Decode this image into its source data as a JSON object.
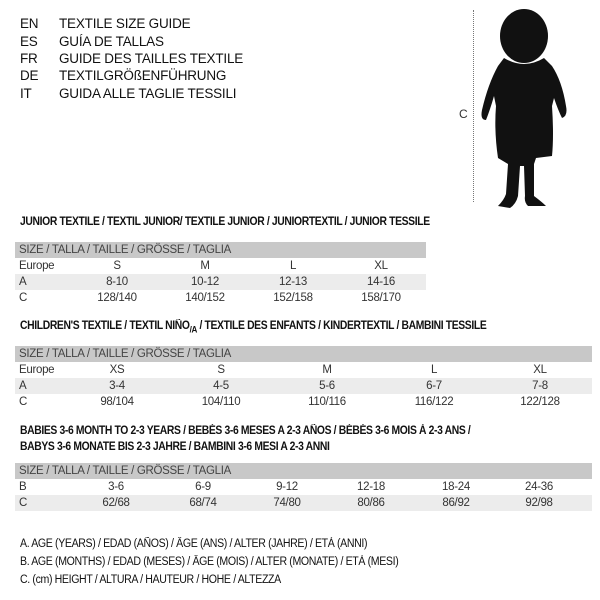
{
  "languages": [
    {
      "code": "EN",
      "name": "TEXTILE SIZE GUIDE"
    },
    {
      "code": "ES",
      "name": "GUÍA DE TALLAS"
    },
    {
      "code": "FR",
      "name": "GUIDE DES TAILLES TEXTILE"
    },
    {
      "code": "DE",
      "name": "TEXTILGRÖßENFÜHRUNG"
    },
    {
      "code": "IT",
      "name": "GUIDA ALLE TAGLIE TESSILI"
    }
  ],
  "figure": {
    "measure_label": "C"
  },
  "junior": {
    "title": "JUNIOR TEXTILE / TEXTIL JUNIOR/ TEXTILE JUNIOR / JUNIORTEXTIL / JUNIOR TESSILE",
    "header": "SIZE / TALLA / TAILLE / GRÖSSE / TAGLIA",
    "rows": [
      {
        "label": "Europe",
        "cells": [
          "S",
          "M",
          "L",
          "XL"
        ]
      },
      {
        "label": "A",
        "cells": [
          "8-10",
          "10-12",
          "12-13",
          "14-16"
        ]
      },
      {
        "label": "C",
        "cells": [
          "128/140",
          "140/152",
          "152/158",
          "158/170"
        ]
      }
    ]
  },
  "children": {
    "title_pre": "CHILDREN'S TEXTILE / TEXTIL NIÑO",
    "title_sub": "/A",
    "title_post": " / TEXTILE DES ENFANTS / KINDERTEXTIL / BAMBINI TESSILE",
    "header": "SIZE / TALLA / TAILLE / GRÖSSE / TAGLIA",
    "rows": [
      {
        "label": "Europe",
        "cells": [
          "XS",
          "S",
          "M",
          "L",
          "XL"
        ]
      },
      {
        "label": "A",
        "cells": [
          "3-4",
          "4-5",
          "5-6",
          "6-7",
          "7-8"
        ]
      },
      {
        "label": "C",
        "cells": [
          "98/104",
          "104/110",
          "110/116",
          "116/122",
          "122/128"
        ]
      }
    ]
  },
  "babies": {
    "title_line1": "BABIES 3-6 MONTH TO 2-3 YEARS / BEBÉS 3-6 MESES A 2-3 AÑOS / BÉBÉS 3-6 MOIS À 2-3 ANS /",
    "title_line2": "BABYS 3-6 MONATE BIS 2-3 JAHRE / BAMBINI 3-6 MESI A 2-3 ANNI",
    "header": "SIZE / TALLA / TAILLE / GRÖSSE / TAGLIA",
    "rows": [
      {
        "label": "B",
        "cells": [
          "3-6",
          "6-9",
          "9-12",
          "12-18",
          "18-24",
          "24-36"
        ]
      },
      {
        "label": "C",
        "cells": [
          "62/68",
          "68/74",
          "74/80",
          "80/86",
          "86/92",
          "92/98"
        ]
      }
    ]
  },
  "legend": [
    "A. AGE (YEARS) / EDAD (AÑOS) / ÂGE (ANS) / ALTER (JAHRE) / ETÀ (ANNI)",
    "B. AGE (MONTHS) / EDAD (MESES) / ÂGE (MOIS) / ALTER (MONATE) / ETÀ (MESI)",
    "C. (cm) HEIGHT / ALTURA / HAUTEUR / HÖHE / ALTEZZA"
  ]
}
